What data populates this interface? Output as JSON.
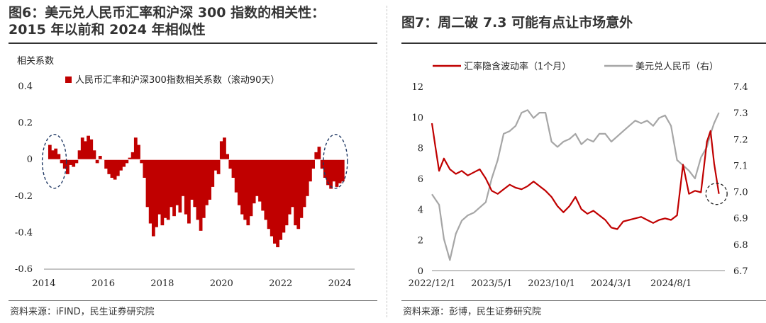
{
  "left_figure": {
    "title": "图6：美元兑人民币汇率和沪深  300  指数的相关性：\n2015 年以前和 2024 年相似性",
    "source": "资料来源：iFIND，民生证券研究院",
    "chart_data": {
      "type": "bar",
      "ylabel": "相关系数",
      "legend": "人民币汇率和沪深300指数相关系数（滚动90天）",
      "legend_position": "top",
      "ylim": [
        -0.6,
        0.4
      ],
      "yticks": [
        0.4,
        0.2,
        0,
        -0.2,
        -0.4,
        -0.6
      ],
      "ytick_labels": [
        "0.4",
        "0.2",
        "0",
        "-0.2",
        "-0.4",
        "-0.6"
      ],
      "xlim": [
        2014,
        2024.5
      ],
      "xticks": [
        2014,
        2016,
        2018,
        2020,
        2022,
        2024
      ],
      "xtick_labels": [
        "2014",
        "2016",
        "2018",
        "2020",
        "2022",
        "2024"
      ],
      "color": "#c00000",
      "annotations": [
        {
          "shape": "dashed-ellipse",
          "x": 2014.35,
          "y": -0.01
        },
        {
          "shape": "dashed-ellipse",
          "x": 2023.85,
          "y": -0.01
        }
      ],
      "x": [
        2014.2,
        2014.3,
        2014.4,
        2014.5,
        2014.6,
        2014.7,
        2014.8,
        2014.9,
        2015.0,
        2015.1,
        2015.2,
        2015.3,
        2015.4,
        2015.5,
        2015.6,
        2015.7,
        2015.8,
        2015.9,
        2016.0,
        2016.1,
        2016.2,
        2016.3,
        2016.4,
        2016.5,
        2016.6,
        2016.7,
        2016.8,
        2016.9,
        2017.0,
        2017.1,
        2017.2,
        2017.3,
        2017.4,
        2017.5,
        2017.6,
        2017.7,
        2017.8,
        2017.9,
        2018.0,
        2018.1,
        2018.2,
        2018.3,
        2018.4,
        2018.5,
        2018.6,
        2018.7,
        2018.8,
        2018.9,
        2019.0,
        2019.1,
        2019.2,
        2019.3,
        2019.4,
        2019.5,
        2019.6,
        2019.7,
        2019.8,
        2019.9,
        2020.0,
        2020.1,
        2020.2,
        2020.3,
        2020.4,
        2020.5,
        2020.6,
        2020.7,
        2020.8,
        2020.9,
        2021.0,
        2021.1,
        2021.2,
        2021.3,
        2021.4,
        2021.5,
        2021.6,
        2021.7,
        2021.8,
        2021.9,
        2022.0,
        2022.1,
        2022.2,
        2022.3,
        2022.4,
        2022.5,
        2022.6,
        2022.7,
        2022.8,
        2022.9,
        2023.0,
        2023.1,
        2023.2,
        2023.3,
        2023.4,
        2023.5,
        2023.6,
        2023.7,
        2023.8,
        2023.9,
        2024.0,
        2024.1
      ],
      "values": [
        0.08,
        0.05,
        0.06,
        0.03,
        -0.02,
        -0.05,
        -0.08,
        -0.03,
        -0.04,
        -0.02,
        0.05,
        0.12,
        0.1,
        0.13,
        0.11,
        0.05,
        -0.02,
        0.02,
        0.0,
        -0.05,
        -0.08,
        -0.1,
        -0.11,
        -0.09,
        -0.06,
        -0.04,
        -0.02,
        0.01,
        0.04,
        0.12,
        0.08,
        -0.02,
        -0.1,
        -0.26,
        -0.35,
        -0.42,
        -0.37,
        -0.3,
        -0.36,
        -0.32,
        -0.33,
        -0.26,
        -0.31,
        -0.25,
        -0.29,
        -0.2,
        -0.3,
        -0.35,
        -0.22,
        -0.26,
        -0.33,
        -0.39,
        -0.32,
        -0.25,
        -0.22,
        -0.15,
        -0.06,
        -0.08,
        0.1,
        0.12,
        0.03,
        -0.05,
        -0.1,
        -0.18,
        -0.25,
        -0.3,
        -0.33,
        -0.36,
        -0.31,
        -0.24,
        -0.2,
        -0.23,
        -0.28,
        -0.33,
        -0.38,
        -0.42,
        -0.46,
        -0.48,
        -0.44,
        -0.4,
        -0.36,
        -0.3,
        -0.26,
        -0.36,
        -0.38,
        -0.32,
        -0.26,
        -0.2,
        -0.12,
        -0.05,
        0.04,
        0.07,
        -0.05,
        -0.1,
        -0.14,
        -0.16,
        -0.12,
        -0.15,
        -0.13,
        -0.12
      ]
    }
  },
  "right_figure": {
    "title": "图7：周二破 7.3 可能有点让市场意外",
    "source": "资料来源：彭博，民生证券研究院",
    "chart_data": {
      "type": "line",
      "legend_position": "top",
      "x_labels": [
        "2022/12/1",
        "2023/5/1",
        "2023/10/1",
        "2024/3/1",
        "2024/8/1"
      ],
      "x_label_positions": [
        0,
        5,
        10,
        15,
        20
      ],
      "xlim": [
        0,
        24.5
      ],
      "ylim_left": [
        0,
        12
      ],
      "yticks_left": [
        0,
        2,
        4,
        6,
        8,
        10,
        12
      ],
      "ytick_labels_left": [
        "0",
        "2",
        "4",
        "6",
        "8",
        "10",
        "12"
      ],
      "ylim_right": [
        6.7,
        7.4
      ],
      "yticks_right": [
        6.7,
        6.8,
        6.9,
        7.0,
        7.1,
        7.2,
        7.3,
        7.4
      ],
      "ytick_labels_right": [
        "6.7",
        "6.8",
        "6.9",
        "7.0",
        "7.1",
        "7.2",
        "7.3",
        "7.4"
      ],
      "annotations": [
        {
          "shape": "dashed-circle",
          "x": 23.8,
          "y_left": 5.0
        }
      ],
      "series": [
        {
          "name": "汇率隐含波动率（1个月）",
          "axis": "left",
          "color": "#c00000",
          "x": [
            0,
            0.3,
            0.6,
            1,
            1.5,
            2,
            2.5,
            3,
            3.5,
            4,
            4.5,
            5,
            5.5,
            6,
            6.5,
            7,
            7.5,
            8,
            8.5,
            9,
            9.5,
            10,
            10.5,
            11,
            11.5,
            12,
            12.5,
            13,
            13.5,
            14,
            14.5,
            15,
            15.5,
            16,
            16.5,
            17,
            17.5,
            18,
            18.5,
            19,
            19.5,
            20,
            20.5,
            21,
            21.5,
            22,
            22.5,
            23,
            23.3,
            23.6,
            24
          ],
          "values": [
            9.6,
            8.0,
            6.5,
            7.3,
            6.6,
            6.3,
            6.5,
            6.2,
            6.4,
            6.6,
            6.0,
            5.2,
            5.0,
            5.3,
            5.6,
            5.4,
            5.3,
            5.5,
            5.8,
            5.5,
            5.2,
            4.8,
            4.2,
            3.8,
            4.2,
            4.8,
            4.0,
            3.7,
            3.9,
            3.6,
            3.3,
            2.8,
            2.7,
            3.2,
            3.3,
            3.4,
            3.5,
            3.3,
            3.1,
            3.3,
            3.4,
            3.3,
            3.6,
            6.9,
            5.0,
            5.2,
            5.1,
            8.4,
            9.1,
            7.0,
            5.0
          ]
        },
        {
          "name": "美元兑人民币（右）",
          "axis": "right",
          "color": "#a6a6a6",
          "x": [
            0,
            0.3,
            0.6,
            1,
            1.5,
            2,
            2.5,
            3,
            3.5,
            4,
            4.5,
            5,
            5.5,
            6,
            6.5,
            7,
            7.5,
            8,
            8.5,
            9,
            9.5,
            10,
            10.5,
            11,
            11.5,
            12,
            12.5,
            13,
            13.5,
            14,
            14.5,
            15,
            15.5,
            16,
            16.5,
            17,
            17.5,
            18,
            18.5,
            19,
            19.5,
            20,
            20.5,
            21,
            21.5,
            22,
            22.5,
            23,
            23.3,
            23.6,
            24
          ],
          "values": [
            6.99,
            6.97,
            6.95,
            6.82,
            6.74,
            6.84,
            6.89,
            6.91,
            6.92,
            6.94,
            6.96,
            7.05,
            7.12,
            7.22,
            7.23,
            7.25,
            7.3,
            7.31,
            7.28,
            7.3,
            7.3,
            7.19,
            7.17,
            7.19,
            7.2,
            7.22,
            7.18,
            7.2,
            7.19,
            7.22,
            7.22,
            7.19,
            7.21,
            7.23,
            7.25,
            7.27,
            7.26,
            7.27,
            7.25,
            7.28,
            7.29,
            7.25,
            7.12,
            7.1,
            7.08,
            7.05,
            7.13,
            7.17,
            7.22,
            7.26,
            7.3
          ]
        }
      ]
    }
  }
}
